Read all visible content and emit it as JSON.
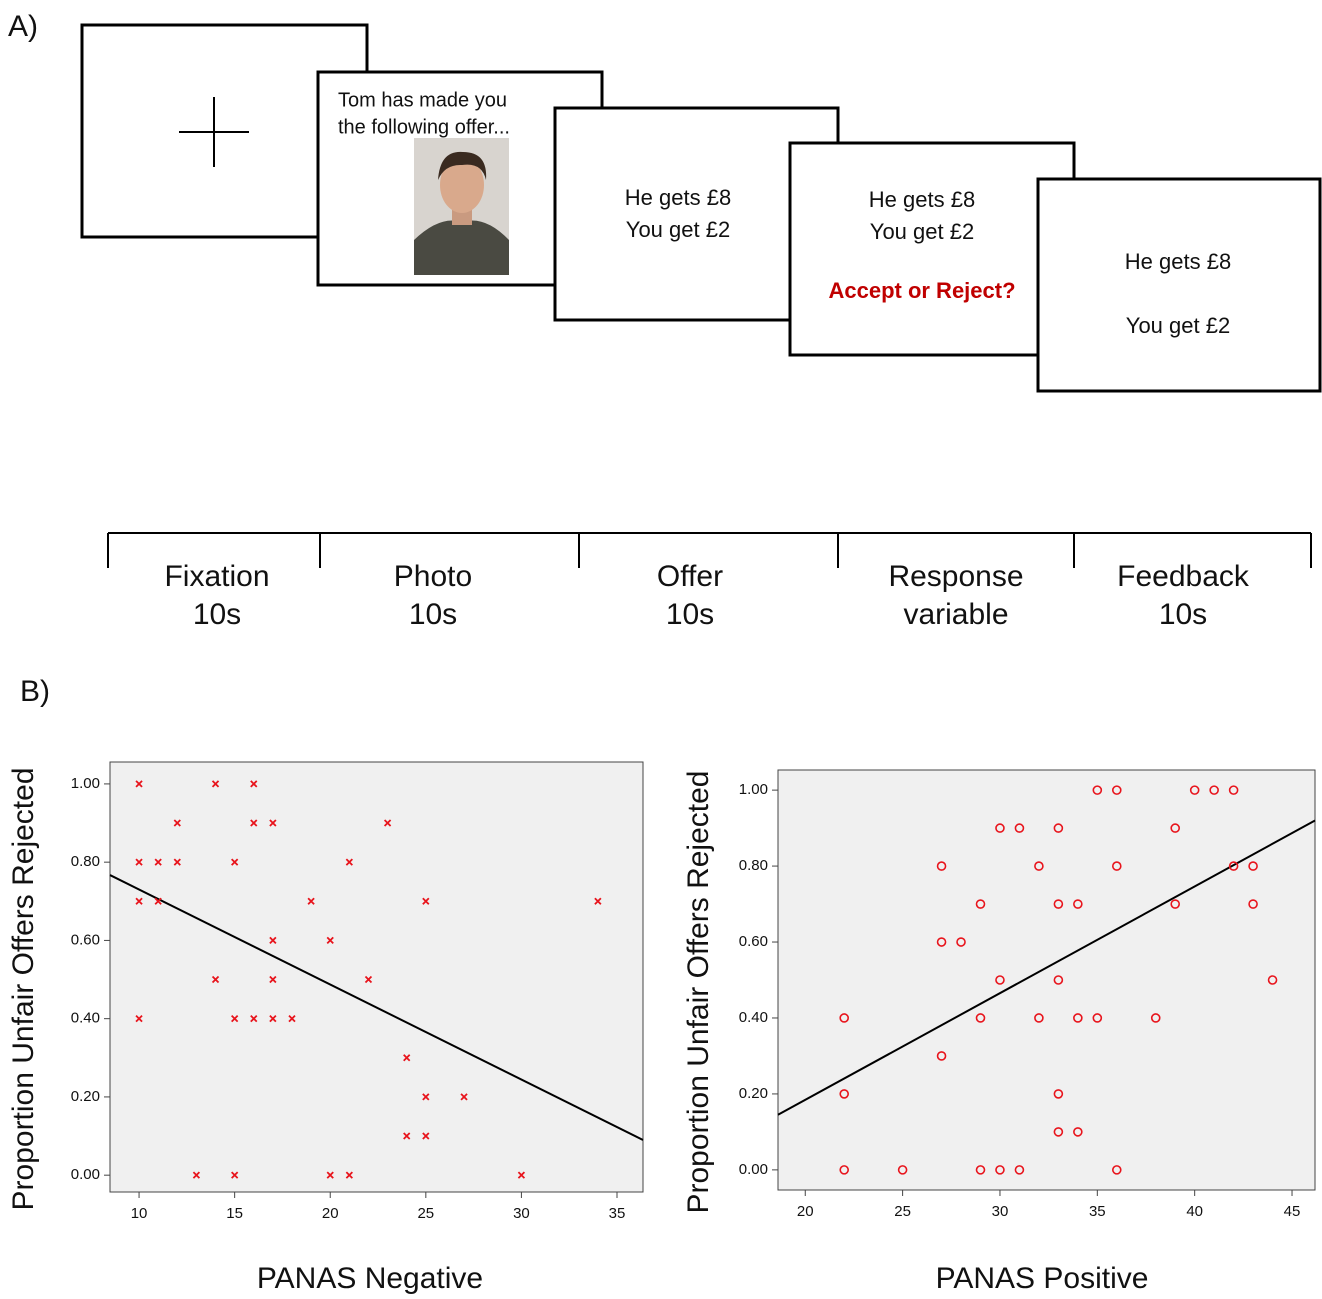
{
  "panel_a": {
    "label": "A)",
    "screens": {
      "photo": {
        "lines": [
          "Tom has made you",
          "the following offer..."
        ]
      },
      "offer": {
        "lines": [
          "He gets £8",
          "You get £2"
        ]
      },
      "response": {
        "lines": [
          "He gets £8",
          "You get £2"
        ],
        "prompt": "Accept or Reject?"
      },
      "feedback": {
        "lines": [
          "He gets £8",
          "You get £2"
        ]
      }
    },
    "timeline": [
      {
        "lines": [
          "Fixation",
          "10s"
        ]
      },
      {
        "lines": [
          "Photo",
          "10s"
        ]
      },
      {
        "lines": [
          "Offer",
          "10s"
        ]
      },
      {
        "lines": [
          "Response",
          "variable"
        ]
      },
      {
        "lines": [
          "Feedback",
          "10s"
        ]
      }
    ]
  },
  "panel_b": {
    "label": "B)"
  },
  "chart_data": [
    {
      "type": "scatter",
      "marker": "x",
      "color": "#e8141c",
      "x_label": "PANAS Negative",
      "y_label": "Proportion Unfair Offers Rejected",
      "x": [
        10,
        10,
        10,
        10,
        11,
        11,
        12,
        12,
        13,
        14,
        14,
        15,
        15,
        15,
        16,
        16,
        16,
        17,
        17,
        17,
        17,
        18,
        19,
        20,
        20,
        21,
        21,
        22,
        23,
        24,
        24,
        25,
        25,
        25,
        27,
        30,
        34
      ],
      "values": [
        1.0,
        0.8,
        0.7,
        0.4,
        0.8,
        0.7,
        0.9,
        0.8,
        0,
        1.0,
        0.5,
        0.8,
        0.4,
        0,
        1.0,
        0.9,
        0.4,
        0.9,
        0.6,
        0.5,
        0.4,
        0.4,
        0.7,
        0.6,
        0,
        0.8,
        0,
        0.5,
        0.9,
        0.3,
        0.1,
        0.7,
        0.2,
        0.1,
        0.2,
        0,
        0.7
      ],
      "fit_line": {
        "x": [
          8.48,
          36.36
        ],
        "y": [
          0.767,
          0.09
        ]
      },
      "xlim": [
        8.48,
        36.36
      ],
      "ylim": [
        -0.043,
        1.056
      ],
      "xticks": [
        10,
        15,
        20,
        25,
        30,
        35
      ],
      "yticks": [
        {
          "value": 0,
          "label": "0.00"
        },
        {
          "value": 0.2,
          "label": "0.20"
        },
        {
          "value": 0.4,
          "label": "0.40"
        },
        {
          "value": 0.6,
          "label": "0.60"
        },
        {
          "value": 0.8,
          "label": "0.80"
        },
        {
          "value": 1.0,
          "label": "1.00"
        }
      ]
    },
    {
      "type": "scatter",
      "marker": "o",
      "color": "#e8141c",
      "x_label": "PANAS Positive",
      "y_label": "Proportion Unfair Offers Rejected",
      "x": [
        22,
        22,
        22,
        25,
        27,
        27,
        27,
        28,
        29,
        29,
        29,
        30,
        30,
        30,
        31,
        31,
        32,
        32,
        33,
        33,
        33,
        33,
        33,
        34,
        34,
        34,
        35,
        35,
        36,
        36,
        36,
        38,
        39,
        39,
        40,
        41,
        42,
        42,
        43,
        43,
        44
      ],
      "values": [
        0.4,
        0.2,
        0,
        0,
        0.8,
        0.6,
        0.3,
        0.6,
        0.7,
        0.4,
        0,
        0.9,
        0.5,
        0,
        0.9,
        0,
        0.8,
        0.4,
        0.9,
        0.7,
        0.5,
        0.2,
        0.1,
        0.7,
        0.4,
        0.1,
        1.0,
        0.4,
        1.0,
        0.8,
        0,
        0.4,
        0.9,
        0.7,
        1.0,
        1.0,
        1.0,
        0.8,
        0.8,
        0.7,
        0.5
      ],
      "fit_line": {
        "x": [
          18.6,
          46.18
        ],
        "y": [
          0.145,
          0.92
        ]
      },
      "xlim": [
        18.6,
        46.18
      ],
      "ylim": [
        -0.053,
        1.053
      ],
      "xticks": [
        20,
        25,
        30,
        35,
        40,
        45
      ],
      "yticks": [
        {
          "value": 0,
          "label": "0.00"
        },
        {
          "value": 0.2,
          "label": "0.20"
        },
        {
          "value": 0.4,
          "label": "0.40"
        },
        {
          "value": 0.6,
          "label": "0.60"
        },
        {
          "value": 0.8,
          "label": "0.80"
        },
        {
          "value": 1.0,
          "label": "1.00"
        }
      ]
    }
  ]
}
